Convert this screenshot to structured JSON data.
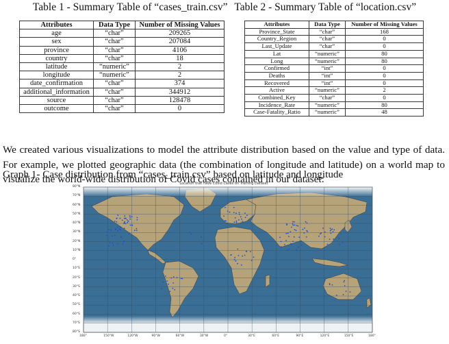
{
  "header": {
    "table1_title": "Table 1 - Summary Table of “cases_train.csv”",
    "table2_title": "Table 2 - Summary Table of “location.csv”"
  },
  "table1": {
    "headers": [
      "Attributes",
      "Data Type",
      "Number of Missing Values"
    ],
    "rows": [
      [
        "age",
        "“char”",
        "209265"
      ],
      [
        "sex",
        "“char”",
        "207084"
      ],
      [
        "province",
        "“char”",
        "4106"
      ],
      [
        "country",
        "“char”",
        "18"
      ],
      [
        "latitude",
        "“numeric”",
        "2"
      ],
      [
        "longitude",
        "“numeric”",
        "2"
      ],
      [
        "date_confirmation",
        "“char”",
        "374"
      ],
      [
        "additional_information",
        "“char”",
        "344912"
      ],
      [
        "source",
        "“char”",
        "128478"
      ],
      [
        "outcome",
        "“char”",
        "0"
      ]
    ]
  },
  "table2": {
    "headers": [
      "Attributes",
      "Data Type",
      "Number of Missing Values"
    ],
    "rows": [
      [
        "Province_State",
        "“char”",
        "168"
      ],
      [
        "Country_Region",
        "“char”",
        "0"
      ],
      [
        "Last_Update",
        "“char”",
        "0"
      ],
      [
        "Lat",
        "“numeric”",
        "80"
      ],
      [
        "Long",
        "“numeric”",
        "80"
      ],
      [
        "Confirmed",
        "“int”",
        "0"
      ],
      [
        "Deaths",
        "“int”",
        "0"
      ],
      [
        "Recovered",
        "“int”",
        "0"
      ],
      [
        "Active",
        "“numeric”",
        "2"
      ],
      [
        "Combined_Key",
        "“char”",
        "0"
      ],
      [
        "Incidence_Rate",
        "“numeric”",
        "80"
      ],
      [
        "Case-Fatality_Ratio",
        "“numeric”",
        "48"
      ]
    ]
  },
  "paragraph": "We created various visualizations to model the attribute distribution based on the value and type of data. For example, we plotted geographic data (the combination of longitude and latitude) on a world map to visualize the world-wide distribution of Covid cases contained in our dataset:",
  "caption": "Graph 1- Case distribution from “cases_train.csv” based on latitude and longitude",
  "map": {
    "title": "Location that have Covid Cases on Training Dataset",
    "y_ticks": [
      "80°N",
      "70°N",
      "60°N",
      "50°N",
      "40°N",
      "30°N",
      "20°N",
      "10°N",
      "0°",
      "10°S",
      "20°S",
      "30°S",
      "40°S",
      "50°S",
      "60°S",
      "70°S",
      "80°S"
    ],
    "x_ticks": [
      "180°",
      "150°W",
      "120°W",
      "90°W",
      "60°W",
      "30°W",
      "0°",
      "30°E",
      "60°E",
      "90°E",
      "120°E",
      "150°E",
      "180°"
    ],
    "colors": {
      "ocean": "#3a6e94",
      "land": "#b7a37a",
      "ice": "#eef2f5",
      "points": "#1f4fd1"
    }
  }
}
